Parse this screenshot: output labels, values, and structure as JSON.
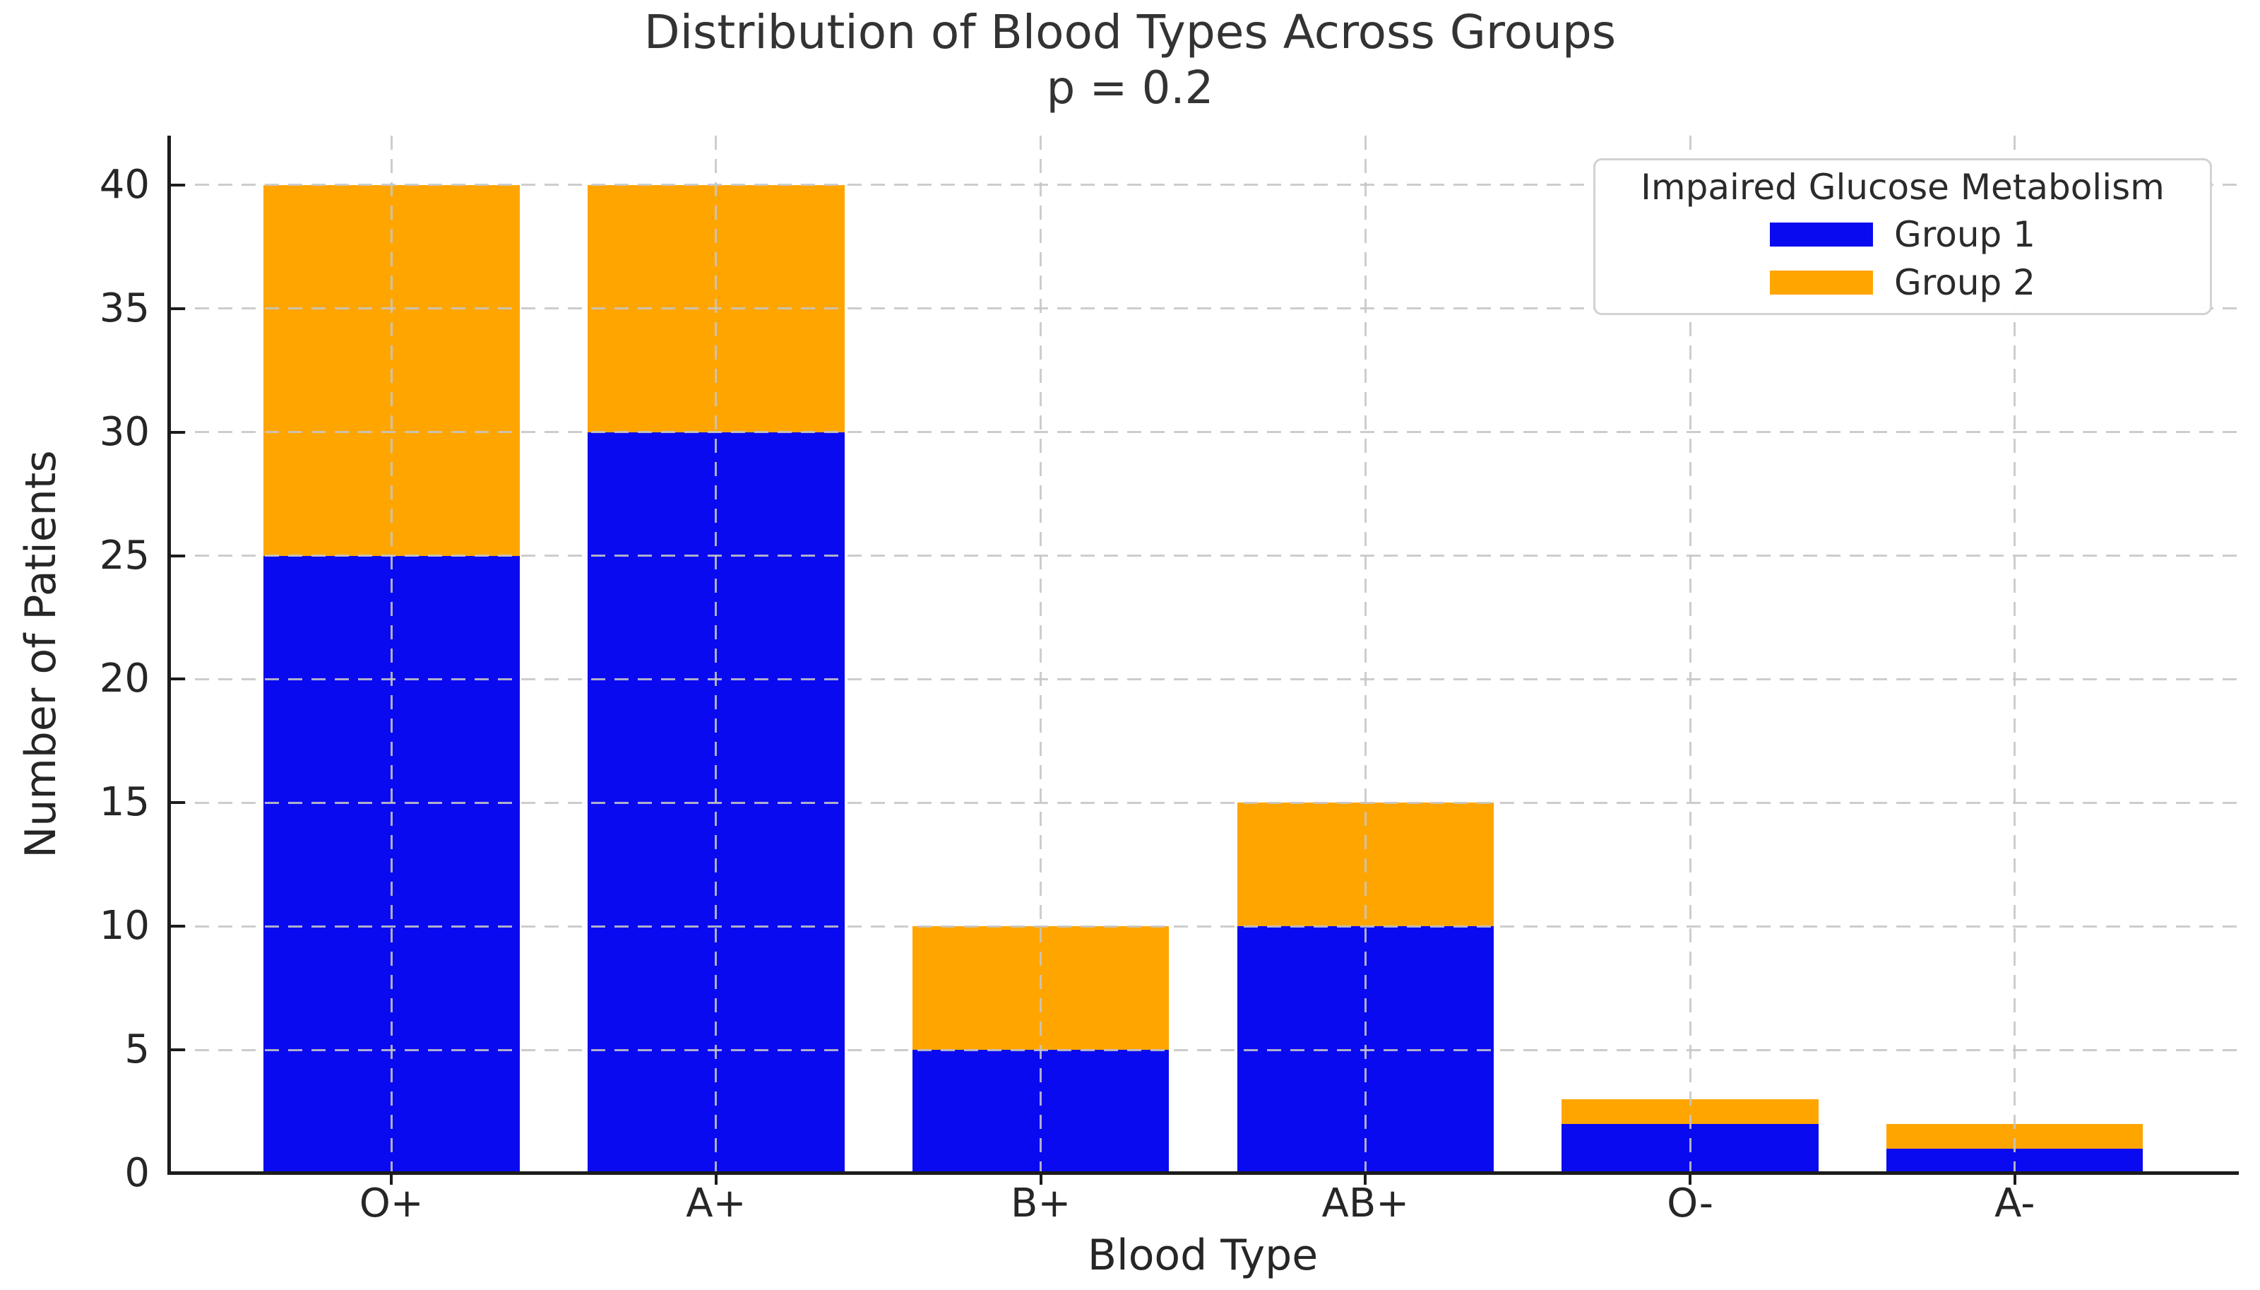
{
  "chart_data": {
    "type": "bar",
    "stacked": true,
    "title": "Distribution of Blood Types Across Groups",
    "subtitle": "p = 0.2",
    "xlabel": "Blood Type",
    "ylabel": "Number of Patients",
    "categories": [
      "O+",
      "A+",
      "B+",
      "AB+",
      "O-",
      "A-"
    ],
    "series": [
      {
        "name": "Group 1",
        "color": "#0a0af0",
        "values": [
          25,
          30,
          5,
          10,
          2,
          1
        ]
      },
      {
        "name": "Group 2",
        "color": "#ffa500",
        "values": [
          15,
          10,
          5,
          5,
          1,
          1
        ]
      }
    ],
    "totals": [
      40,
      40,
      10,
      15,
      3,
      2
    ],
    "yticks": [
      0,
      5,
      10,
      15,
      20,
      25,
      30,
      35,
      40
    ],
    "ylim": [
      0,
      42
    ],
    "grid": true,
    "legend_title": "Impaired Glucose Metabolism",
    "legend_position": "upper right",
    "text_color": "#262626",
    "grid_color": "#c6c6c6"
  }
}
